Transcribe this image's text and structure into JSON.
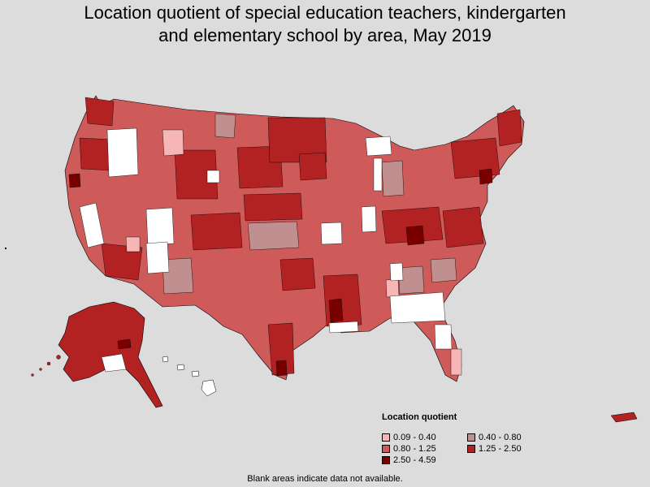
{
  "title_lines": [
    "Location quotient of special education teachers, kindergarten",
    "and elementary school by area, May 2019"
  ],
  "legend": {
    "title": "Location quotient",
    "items": [
      {
        "label": "0.09 - 0.40",
        "color": "#f7b6b6"
      },
      {
        "label": "0.40 - 0.80",
        "color": "#c09090"
      },
      {
        "label": "0.80 - 1.25",
        "color": "#cf5a5a"
      },
      {
        "label": "1.25 - 2.50",
        "color": "#b22222"
      },
      {
        "label": "2.50 - 4.59",
        "color": "#7a0000"
      }
    ]
  },
  "note": "Blank areas indicate data not available.",
  "colors": {
    "background": "#dcdcdc",
    "no_data": "#ffffff",
    "border": "#000000"
  }
}
